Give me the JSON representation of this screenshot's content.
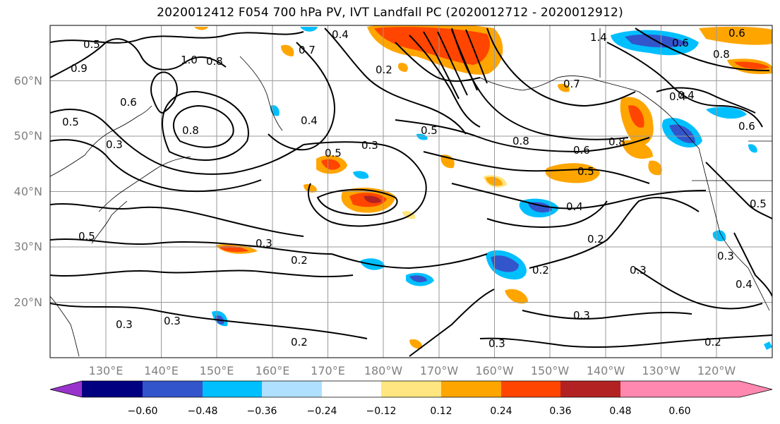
{
  "title": "2020012412 F054 700 hPa PV, IVT Landfall PC (2020012712 - 2020012912)",
  "lat_labels": [
    "60°N",
    "50°N",
    "40°N",
    "30°N",
    "20°N"
  ],
  "lon_labels": [
    "130°E",
    "140°E",
    "150°E",
    "160°E",
    "170°E",
    "180°W",
    "170°W",
    "160°W",
    "150°W",
    "140°W",
    "130°W",
    "120°W"
  ],
  "colorbar": {
    "ticks": [
      "−0.60",
      "−0.48",
      "−0.36",
      "−0.24",
      "−0.12",
      "0.12",
      "0.24",
      "0.36",
      "0.48",
      "0.60"
    ],
    "colors": [
      "#9933cc",
      "#000080",
      "#3355cc",
      "#00bfff",
      "#b0e0ff",
      "#ffffff",
      "#ffe680",
      "#ffa500",
      "#ff4500",
      "#b22222",
      "#ff88b0"
    ]
  },
  "contour_labels": [
    "0.5",
    "0.9",
    "1.0",
    "0.8",
    "0.7",
    "0.4",
    "0.6",
    "0.5",
    "0.8",
    "0.3",
    "0.5",
    "0.4",
    "0.2",
    "0.5",
    "0.3",
    "0.8",
    "0.6",
    "0.8",
    "0.5",
    "0.4",
    "0.4",
    "0.6",
    "0.5",
    "0.3",
    "0.2",
    "0.2",
    "0.3",
    "0.2",
    "0.3",
    "0.3",
    "0.2",
    "0.3",
    "0.3",
    "0.2",
    "0.4",
    "0.3",
    "0.5",
    "0.4",
    "0.7",
    "1.4",
    "0.6",
    "0.8",
    "0.6"
  ]
}
